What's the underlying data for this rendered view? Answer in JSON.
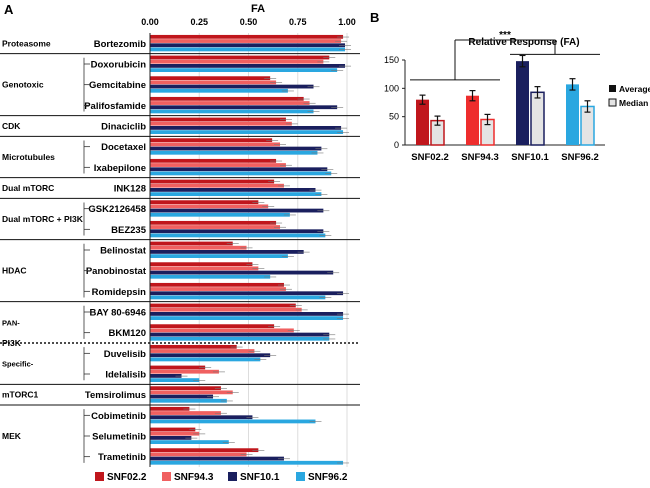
{
  "panel_a_label": "A",
  "panel_b_label": "B",
  "chart_data": [
    {
      "type": "bar",
      "orientation": "horizontal",
      "title": "FA",
      "xlim": [
        0,
        1
      ],
      "ticks": [
        "0.00",
        "0.25",
        "0.50",
        "0.75",
        "1.00"
      ],
      "tick_values": [
        0,
        0.25,
        0.5,
        0.75,
        1.0
      ],
      "grid": true,
      "legend_position": "bottom",
      "series": [
        {
          "name": "SNF02.2",
          "color": "#c0161c"
        },
        {
          "name": "SNF94.3",
          "color": "#f06060"
        },
        {
          "name": "SNF10.1",
          "color": "#1a1f5e"
        },
        {
          "name": "SNF96.2",
          "color": "#2aa7e0"
        }
      ],
      "categories": [
        "Bortezomib",
        "Doxorubicin",
        "Gemcitabine",
        "Palifosfamide",
        "Dinaciclib",
        "Docetaxel",
        "Ixabepilone",
        "INK128",
        "GSK2126458",
        "BEZ235",
        "Belinostat",
        "Panobinostat",
        "Romidepsin",
        "BAY 80-6946",
        "BKM120",
        "Duvelisib",
        "Idelalisib",
        "Temsirolimus",
        "Cobimetinib",
        "Selumetinib",
        "Trametinib"
      ],
      "values": [
        [
          0.98,
          0.97,
          0.99,
          0.99
        ],
        [
          0.91,
          0.88,
          0.99,
          0.95
        ],
        [
          0.61,
          0.64,
          0.83,
          0.7
        ],
        [
          0.78,
          0.81,
          0.95,
          0.83
        ],
        [
          0.69,
          0.72,
          0.97,
          0.98
        ],
        [
          0.62,
          0.66,
          0.87,
          0.85
        ],
        [
          0.64,
          0.69,
          0.9,
          0.92
        ],
        [
          0.63,
          0.68,
          0.84,
          0.87
        ],
        [
          0.55,
          0.6,
          0.88,
          0.71
        ],
        [
          0.64,
          0.66,
          0.88,
          0.89
        ],
        [
          0.42,
          0.49,
          0.78,
          0.7
        ],
        [
          0.52,
          0.55,
          0.93,
          0.61
        ],
        [
          0.68,
          0.69,
          0.98,
          0.89
        ],
        [
          0.74,
          0.77,
          0.98,
          0.98
        ],
        [
          0.63,
          0.73,
          0.91,
          0.91
        ],
        [
          0.44,
          0.53,
          0.61,
          0.56
        ],
        [
          0.28,
          0.35,
          0.16,
          0.25
        ],
        [
          0.36,
          0.42,
          0.32,
          0.39
        ],
        [
          0.2,
          0.36,
          0.52,
          0.84
        ],
        [
          0.23,
          0.25,
          0.21,
          0.4
        ],
        [
          0.55,
          0.49,
          0.68,
          0.98
        ]
      ],
      "class_labels": [
        {
          "label": "Proteasome",
          "rows": [
            0,
            0
          ]
        },
        {
          "label": "Genotoxic",
          "rows": [
            1,
            3
          ]
        },
        {
          "label": "CDK",
          "rows": [
            4,
            4
          ]
        },
        {
          "label": "Microtubules",
          "rows": [
            5,
            6
          ]
        },
        {
          "label": "Dual mTORC",
          "rows": [
            7,
            7
          ]
        },
        {
          "label": "Dual mTORC + PI3K",
          "rows": [
            8,
            9
          ]
        },
        {
          "label": "HDAC",
          "rows": [
            10,
            12
          ]
        },
        {
          "label": "PAN-",
          "rows": [
            13,
            14
          ]
        },
        {
          "label": "PI3K",
          "rows": [
            14.5,
            14.5
          ]
        },
        {
          "label": "Specific-",
          "rows": [
            15,
            16
          ]
        },
        {
          "label": "mTORC1",
          "rows": [
            17,
            17
          ]
        },
        {
          "label": "MEK",
          "rows": [
            18,
            20
          ]
        }
      ]
    },
    {
      "type": "bar",
      "title": "Relative Response (FA)",
      "categories": [
        "SNF02.2",
        "SNF94.3",
        "SNF10.1",
        "SNF96.2"
      ],
      "ylim": [
        0,
        150
      ],
      "yticks": [
        "0",
        "50",
        "100",
        "150"
      ],
      "series": [
        {
          "name": "Average",
          "values": [
            80,
            87,
            148,
            107
          ],
          "errors": [
            8,
            9,
            10,
            10
          ]
        },
        {
          "name": "Median",
          "values": [
            43,
            45,
            93,
            68
          ],
          "errors": [
            8,
            9,
            10,
            10
          ]
        }
      ],
      "bar_colors": [
        "#c0161c",
        "#ee2d2d",
        "#1a1f5e",
        "#2aa7e0"
      ],
      "significance": "***",
      "legend_position": "right"
    }
  ]
}
